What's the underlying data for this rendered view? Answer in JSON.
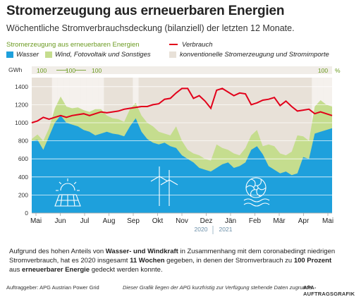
{
  "title": "Stromerzeugung aus erneuerbaren Energien",
  "subtitle": "Wöchentliche Stromverbrauchsdeckung (bilanziell) der letzten 12 Monate.",
  "legend": {
    "group_label": "Stromerzeugung aus erneuerbaren Energien",
    "water": "Wasser",
    "wind": "Wind, Fotovoltaik und Sonstiges",
    "consumption": "Verbrauch",
    "conventional": "konventionelle Stromerzeugung und Stromimporte"
  },
  "colors": {
    "water": "#1ea0dc",
    "wind": "#c5dd8e",
    "conventional": "#e8e1d8",
    "consumption": "#e2001a",
    "green_text": "#6a9a1f",
    "year_text": "#6b8fa8"
  },
  "top_band": {
    "labels": [
      "100",
      "100",
      "100",
      "100"
    ],
    "unit": "%",
    "arrow": "←100→"
  },
  "years": [
    "2020",
    "2021"
  ],
  "note": {
    "p1": "Aufgrund des hohen Anteils von ",
    "b1": "Wasser- und Windkraft",
    "p2": " in Zusammenhang mit dem coronabedingt niedrigen Stromverbrauch, hat es 2020 insgesamt ",
    "b2": "11 Wochen",
    "p3": " gegeben, in denen der Stromverbrauch zu ",
    "b3": "100 Prozent",
    "p4": " aus ",
    "b4": "erneuerbarer Energie",
    "p5": " gedeckt werden konnte."
  },
  "footer": {
    "source": "Auftraggeber: APG Austrian Power Grid",
    "disclaimer": "Dieser Grafik liegen der APG kurzfristig zur Verfügung stehende Daten zugrunde.",
    "credit": "APA-AUFTRAGSGRAFIK"
  },
  "chart_data": {
    "type": "area",
    "ylabel": "GWh",
    "ylim": [
      0,
      1500
    ],
    "yticks": [
      0,
      200,
      400,
      600,
      800,
      1000,
      1200,
      1400
    ],
    "grid": true,
    "month_labels": [
      "Mai",
      "Jun",
      "Jul",
      "Aug",
      "Sep",
      "Okt",
      "Nov",
      "Dez",
      "Jän",
      "Feb",
      "Mär",
      "Apr",
      "Mai"
    ],
    "weeks": 53,
    "series": [
      {
        "name": "Wasser",
        "values": [
          800,
          810,
          700,
          850,
          1000,
          1080,
          1000,
          980,
          960,
          920,
          900,
          860,
          880,
          900,
          880,
          870,
          850,
          960,
          1050,
          900,
          820,
          780,
          760,
          780,
          740,
          720,
          640,
          600,
          560,
          500,
          480,
          460,
          500,
          540,
          560,
          500,
          520,
          560,
          700,
          740,
          650,
          520,
          480,
          440,
          460,
          420,
          440,
          620,
          600,
          880,
          900,
          920,
          940
        ]
      },
      {
        "name": "Wind, Fotovoltaik und Sonstiges",
        "values": [
          820,
          870,
          800,
          940,
          1160,
          1290,
          1180,
          1160,
          1170,
          1140,
          1120,
          1150,
          1150,
          1080,
          1050,
          1040,
          1010,
          1150,
          1220,
          1080,
          1000,
          960,
          900,
          880,
          860,
          960,
          800,
          700,
          660,
          640,
          600,
          580,
          760,
          720,
          700,
          660,
          640,
          720,
          860,
          920,
          740,
          760,
          740,
          660,
          640,
          680,
          860,
          850,
          800,
          1180,
          1250,
          1200,
          1180
        ]
      },
      {
        "name": "Verbrauch",
        "values": [
          1000,
          1020,
          1060,
          1040,
          1060,
          1080,
          1060,
          1080,
          1090,
          1100,
          1080,
          1100,
          1120,
          1110,
          1120,
          1130,
          1150,
          1160,
          1170,
          1180,
          1180,
          1200,
          1210,
          1260,
          1270,
          1330,
          1380,
          1380,
          1270,
          1300,
          1240,
          1160,
          1360,
          1380,
          1340,
          1300,
          1330,
          1320,
          1200,
          1220,
          1250,
          1260,
          1280,
          1190,
          1240,
          1180,
          1130,
          1140,
          1150,
          1100,
          1120,
          1100,
          1080
        ]
      }
    ]
  }
}
